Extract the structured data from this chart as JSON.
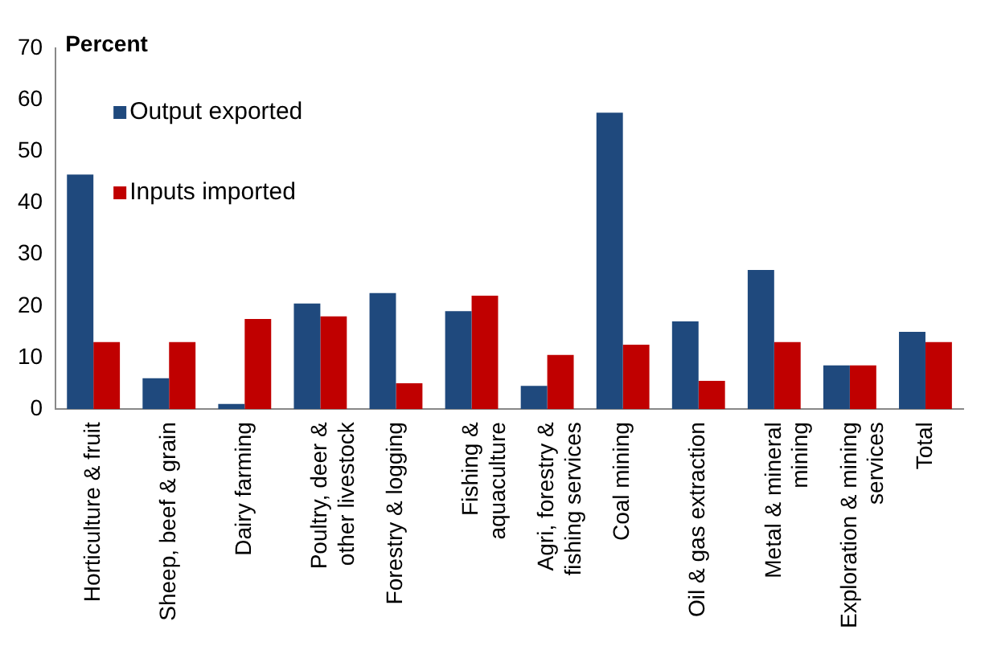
{
  "chart_data": {
    "type": "bar",
    "ylabel": "Percent",
    "categories": [
      "Horticulture & fruit",
      "Sheep, beef & grain",
      "Dairy farming",
      "Poultry, deer & other livestock",
      "Forestry & logging",
      "Fishing & aquaculture",
      "Agri, forestry & fishing services",
      "Coal mining",
      "Oil & gas extraction",
      "Metal & mineral mining",
      "Exploration & mining services",
      "Total"
    ],
    "series": [
      {
        "name": "Output exported",
        "color": "#1f497d",
        "values": [
          45.5,
          6,
          1,
          20.5,
          22.5,
          19,
          4.5,
          57.5,
          17,
          27,
          8.5,
          15
        ]
      },
      {
        "name": "Inputs imported",
        "color": "#c00000",
        "values": [
          13,
          13,
          17.5,
          18,
          5,
          22,
          10.5,
          12.5,
          5.5,
          13,
          8.5,
          13
        ]
      }
    ],
    "ylim": [
      0,
      70
    ],
    "yticks": [
      0,
      10,
      20,
      30,
      40,
      50,
      60,
      70
    ],
    "grid": false,
    "legend": "top left"
  }
}
